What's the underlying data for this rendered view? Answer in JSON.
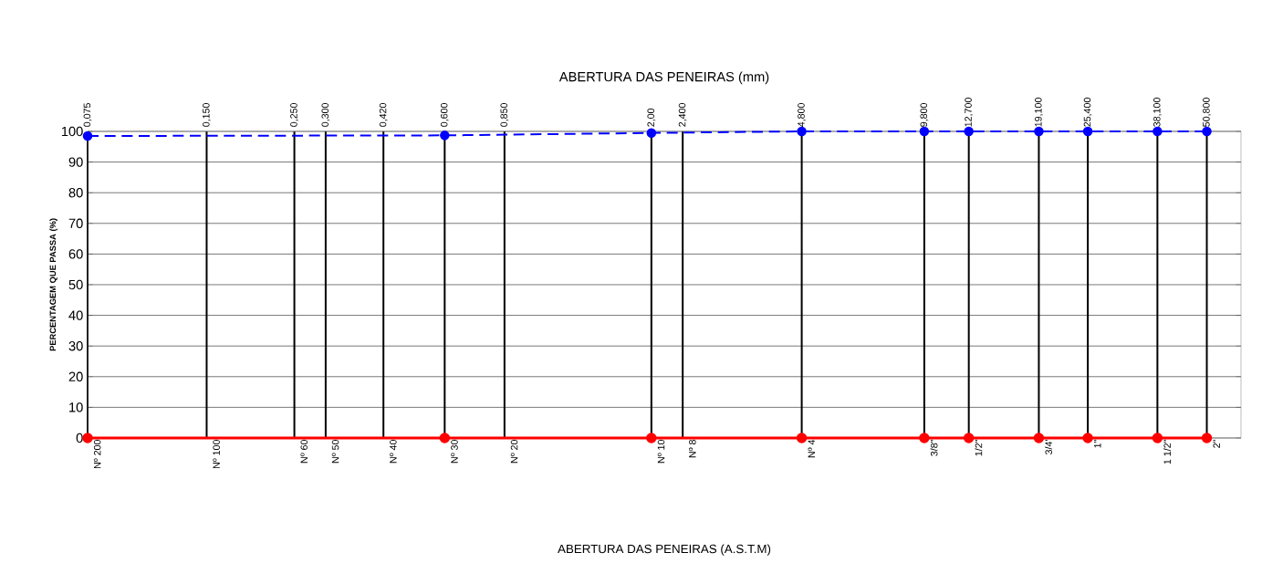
{
  "chart_data": {
    "type": "line",
    "xlabel": "ABERTURA DAS PENEIRAS (mm)",
    "ylabel": "PERCENTAGEM QUE PASSA (%)",
    "log": "x",
    "grid": true,
    "marker": "circle",
    "xlim": [
      0.075,
      62
    ],
    "ylim": [
      0,
      100
    ],
    "yticks": [
      0,
      10,
      20,
      30,
      40,
      50,
      60,
      70,
      80,
      90,
      100
    ],
    "xticks": [
      {
        "value": 0.075,
        "label": "0,075"
      },
      {
        "value": 0.15,
        "label": "0,150"
      },
      {
        "value": 0.25,
        "label": "0,250"
      },
      {
        "value": 0.3,
        "label": "0,300"
      },
      {
        "value": 0.42,
        "label": "0,420"
      },
      {
        "value": 0.6,
        "label": "0,600"
      },
      {
        "value": 0.85,
        "label": "0,850"
      },
      {
        "value": 2.0,
        "label": "2,00"
      },
      {
        "value": 2.4,
        "label": "2,400"
      },
      {
        "value": 4.8,
        "label": "4,800"
      },
      {
        "value": 9.8,
        "label": "9,800"
      },
      {
        "value": 12.7,
        "label": "12,700"
      },
      {
        "value": 19.1,
        "label": "19,100"
      },
      {
        "value": 25.4,
        "label": "25,400"
      },
      {
        "value": 38.1,
        "label": "38,100"
      },
      {
        "value": 50.8,
        "label": "50,800"
      }
    ],
    "annotations": [
      {
        "text": "Nº 200",
        "x": 0.075,
        "y": 0
      },
      {
        "text": "Nº 100",
        "x": 0.15,
        "y": 0
      },
      {
        "text": "Nº 60",
        "x": 0.25,
        "y": 0
      },
      {
        "text": "Nº 50",
        "x": 0.3,
        "y": 0
      },
      {
        "text": "Nº 40",
        "x": 0.42,
        "y": 0
      },
      {
        "text": "Nº 30",
        "x": 0.6,
        "y": 0
      },
      {
        "text": "Nº 20",
        "x": 0.85,
        "y": 0
      },
      {
        "text": "Nº 10",
        "x": 2.0,
        "y": 0
      },
      {
        "text": "Nº 8",
        "x": 2.4,
        "y": 0
      },
      {
        "text": "Nº 4",
        "x": 4.8,
        "y": 0
      },
      {
        "text": "3/8\"",
        "x": 9.8,
        "y": 0
      },
      {
        "text": "1/2\"",
        "x": 12.7,
        "y": 0
      },
      {
        "text": "3/4'",
        "x": 19.1,
        "y": 0
      },
      {
        "text": "1\"",
        "x": 25.4,
        "y": 0
      },
      {
        "text": "1 1/2\"",
        "x": 38.1,
        "y": 0
      },
      {
        "text": "2\"",
        "x": 50.8,
        "y": 0
      },
      "ABERTURA DAS PENEIRAS (A.S.T.M)"
    ],
    "series": [
      {
        "color": "#0000ff",
        "line_style": "dashed",
        "x": [
          0.075,
          0.6,
          2.0,
          4.8,
          9.8,
          12.7,
          19.1,
          25.4,
          38.1,
          50.8
        ],
        "values": [
          98.5,
          98.7,
          99.5,
          100,
          100,
          100,
          100,
          100,
          100,
          100
        ]
      },
      {
        "color": "#ff0000",
        "line_style": "solid",
        "x": [
          0.075,
          0.6,
          2.0,
          4.8,
          9.8,
          12.7,
          19.1,
          25.4,
          38.1,
          50.8
        ],
        "values": [
          0,
          0,
          0,
          0,
          0,
          0,
          0,
          0,
          0,
          0
        ]
      }
    ]
  }
}
